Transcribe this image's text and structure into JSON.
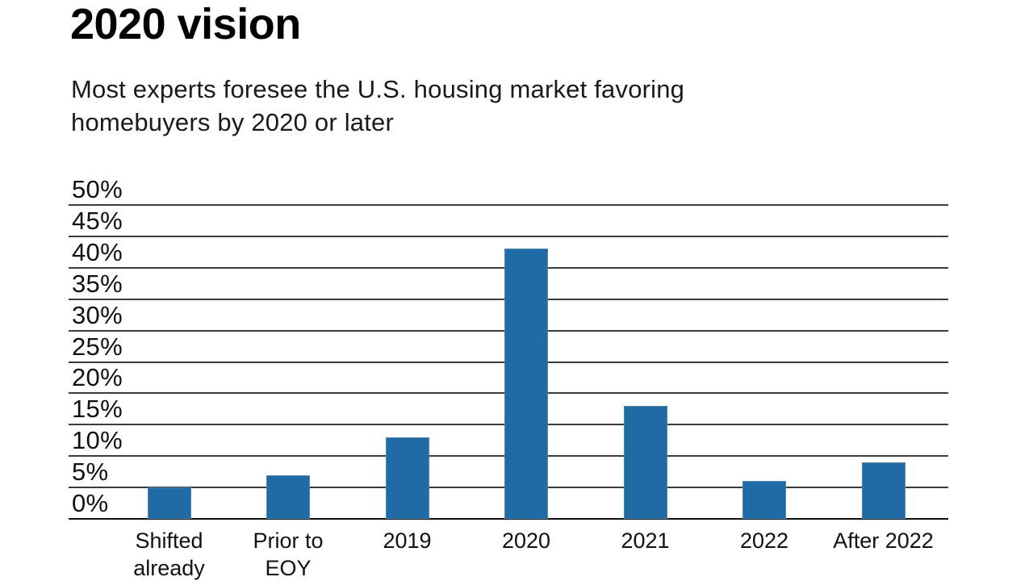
{
  "header": {
    "title": "2020 vision",
    "subtitle_line1": "Most experts foresee the U.S. housing market favoring",
    "subtitle_line2": "homebuyers by 2020 or later"
  },
  "chart_data": {
    "type": "bar",
    "title": "2020 vision",
    "subtitle": "Most experts foresee the U.S. housing market favoring homebuyers by 2020 or later",
    "categories": [
      "Shifted already",
      "Prior to EOY",
      "2019",
      "2020",
      "2021",
      "2022",
      "After 2022"
    ],
    "values": [
      5,
      7,
      13,
      43,
      18,
      6,
      9
    ],
    "xlabel": "",
    "ylabel": "",
    "ylim": [
      0,
      50
    ],
    "ytick_step": 5,
    "ytick_suffix": "%",
    "grid": true,
    "legend": false,
    "colors": {
      "bar_fill": "#1f6ba5",
      "bar_edge": "#4d86b4",
      "gridline": "#3c3c3c",
      "axis": "#111111",
      "text": "#111111"
    }
  }
}
